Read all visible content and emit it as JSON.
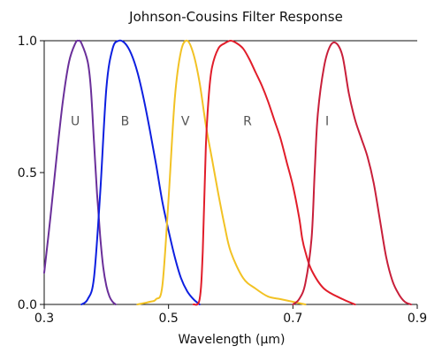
{
  "chart_data": {
    "type": "line",
    "title": "Johnson-Cousins Filter Response",
    "xlabel": "Wavelength (µm)",
    "ylabel": "",
    "xlim": [
      0.3,
      0.9
    ],
    "ylim": [
      0.0,
      1.0
    ],
    "x_ticks": [
      "0.3",
      "0.5",
      "0.7",
      "0.9"
    ],
    "y_ticks": [
      "0.0",
      "0.5",
      "1.0"
    ],
    "grid": false,
    "legend": "none",
    "series": [
      {
        "name": "U",
        "color": "#6a2f9a",
        "label_at": [
          0.35,
          0.68
        ],
        "points": [
          [
            0.3,
            0.12
          ],
          [
            0.31,
            0.33
          ],
          [
            0.32,
            0.56
          ],
          [
            0.33,
            0.77
          ],
          [
            0.34,
            0.92
          ],
          [
            0.35,
            0.99
          ],
          [
            0.355,
            1.0
          ],
          [
            0.36,
            0.99
          ],
          [
            0.37,
            0.92
          ],
          [
            0.375,
            0.82
          ],
          [
            0.38,
            0.62
          ],
          [
            0.385,
            0.42
          ],
          [
            0.39,
            0.26
          ],
          [
            0.395,
            0.14
          ],
          [
            0.4,
            0.07
          ],
          [
            0.405,
            0.03
          ],
          [
            0.41,
            0.01
          ],
          [
            0.415,
            0.0
          ]
        ]
      },
      {
        "name": "B",
        "color": "#0d1fe0",
        "label_at": [
          0.43,
          0.68
        ],
        "points": [
          [
            0.36,
            0.0
          ],
          [
            0.37,
            0.02
          ],
          [
            0.38,
            0.1
          ],
          [
            0.39,
            0.42
          ],
          [
            0.4,
            0.82
          ],
          [
            0.41,
            0.97
          ],
          [
            0.42,
            1.0
          ],
          [
            0.43,
            0.99
          ],
          [
            0.44,
            0.95
          ],
          [
            0.45,
            0.88
          ],
          [
            0.46,
            0.78
          ],
          [
            0.47,
            0.66
          ],
          [
            0.48,
            0.53
          ],
          [
            0.49,
            0.39
          ],
          [
            0.5,
            0.28
          ],
          [
            0.51,
            0.18
          ],
          [
            0.52,
            0.1
          ],
          [
            0.53,
            0.05
          ],
          [
            0.54,
            0.02
          ],
          [
            0.55,
            0.0
          ]
        ]
      },
      {
        "name": "V",
        "color": "#f2c224",
        "label_at": [
          0.527,
          0.68
        ],
        "points": [
          [
            0.45,
            0.0
          ],
          [
            0.47,
            0.01
          ],
          [
            0.48,
            0.02
          ],
          [
            0.49,
            0.07
          ],
          [
            0.5,
            0.4
          ],
          [
            0.51,
            0.78
          ],
          [
            0.52,
            0.96
          ],
          [
            0.53,
            1.0
          ],
          [
            0.54,
            0.95
          ],
          [
            0.55,
            0.84
          ],
          [
            0.56,
            0.68
          ],
          [
            0.57,
            0.55
          ],
          [
            0.58,
            0.42
          ],
          [
            0.59,
            0.3
          ],
          [
            0.6,
            0.2
          ],
          [
            0.62,
            0.1
          ],
          [
            0.64,
            0.06
          ],
          [
            0.66,
            0.03
          ],
          [
            0.68,
            0.02
          ],
          [
            0.7,
            0.01
          ],
          [
            0.72,
            0.0
          ]
        ]
      },
      {
        "name": "R",
        "color": "#e11d2a",
        "label_at": [
          0.627,
          0.68
        ],
        "points": [
          [
            0.54,
            0.0
          ],
          [
            0.55,
            0.02
          ],
          [
            0.555,
            0.2
          ],
          [
            0.56,
            0.6
          ],
          [
            0.565,
            0.8
          ],
          [
            0.57,
            0.9
          ],
          [
            0.58,
            0.97
          ],
          [
            0.59,
            0.99
          ],
          [
            0.6,
            1.0
          ],
          [
            0.61,
            0.99
          ],
          [
            0.62,
            0.97
          ],
          [
            0.63,
            0.93
          ],
          [
            0.64,
            0.88
          ],
          [
            0.65,
            0.83
          ],
          [
            0.66,
            0.77
          ],
          [
            0.67,
            0.7
          ],
          [
            0.68,
            0.63
          ],
          [
            0.69,
            0.54
          ],
          [
            0.7,
            0.45
          ],
          [
            0.71,
            0.33
          ],
          [
            0.715,
            0.25
          ],
          [
            0.72,
            0.2
          ],
          [
            0.73,
            0.13
          ],
          [
            0.75,
            0.06
          ],
          [
            0.78,
            0.02
          ],
          [
            0.8,
            0.0
          ]
        ]
      },
      {
        "name": "I",
        "color": "#c81f3a",
        "label_at": [
          0.755,
          0.68
        ],
        "points": [
          [
            0.7,
            0.0
          ],
          [
            0.71,
            0.02
          ],
          [
            0.72,
            0.08
          ],
          [
            0.73,
            0.25
          ],
          [
            0.735,
            0.5
          ],
          [
            0.74,
            0.72
          ],
          [
            0.75,
            0.9
          ],
          [
            0.76,
            0.98
          ],
          [
            0.77,
            0.99
          ],
          [
            0.78,
            0.94
          ],
          [
            0.79,
            0.8
          ],
          [
            0.8,
            0.7
          ],
          [
            0.81,
            0.63
          ],
          [
            0.82,
            0.56
          ],
          [
            0.83,
            0.46
          ],
          [
            0.84,
            0.32
          ],
          [
            0.85,
            0.18
          ],
          [
            0.86,
            0.09
          ],
          [
            0.87,
            0.04
          ],
          [
            0.88,
            0.01
          ],
          [
            0.89,
            0.0
          ]
        ]
      }
    ]
  }
}
